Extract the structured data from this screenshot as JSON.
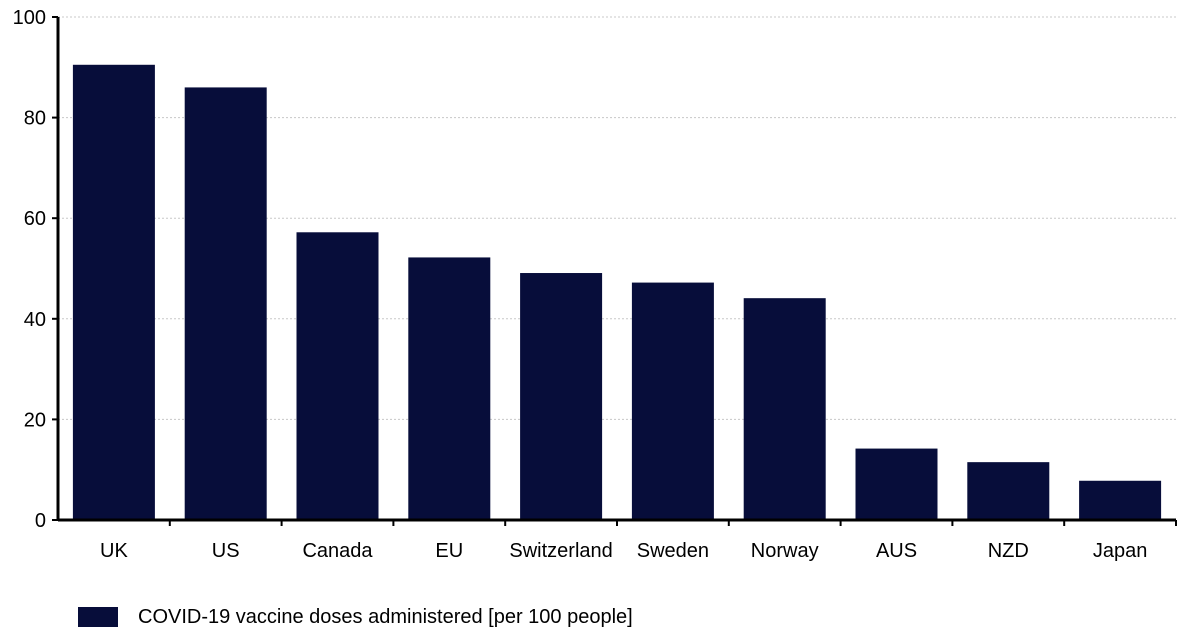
{
  "colors": {
    "bar": "#070d3a",
    "axis": "#000000",
    "grid": "#c8c8c8"
  },
  "legend": {
    "label": "COVID-19 vaccine doses administered [per 100 people]"
  },
  "chart_data": {
    "type": "bar",
    "categories": [
      "UK",
      "US",
      "Canada",
      "EU",
      "Switzerland",
      "Sweden",
      "Norway",
      "AUS",
      "NZD",
      "Japan"
    ],
    "series": [
      {
        "name": "COVID-19 vaccine doses administered [per 100 people]",
        "values": [
          90.5,
          86,
          57.2,
          52.2,
          49.1,
          47.2,
          44.1,
          14.2,
          11.5,
          7.8
        ]
      }
    ],
    "title": "",
    "xlabel": "",
    "ylabel": "",
    "ylim": [
      0,
      100
    ],
    "yticks": [
      0,
      20,
      40,
      60,
      80,
      100
    ],
    "grid": "horizontal dotted",
    "legend_position": "bottom-left"
  }
}
